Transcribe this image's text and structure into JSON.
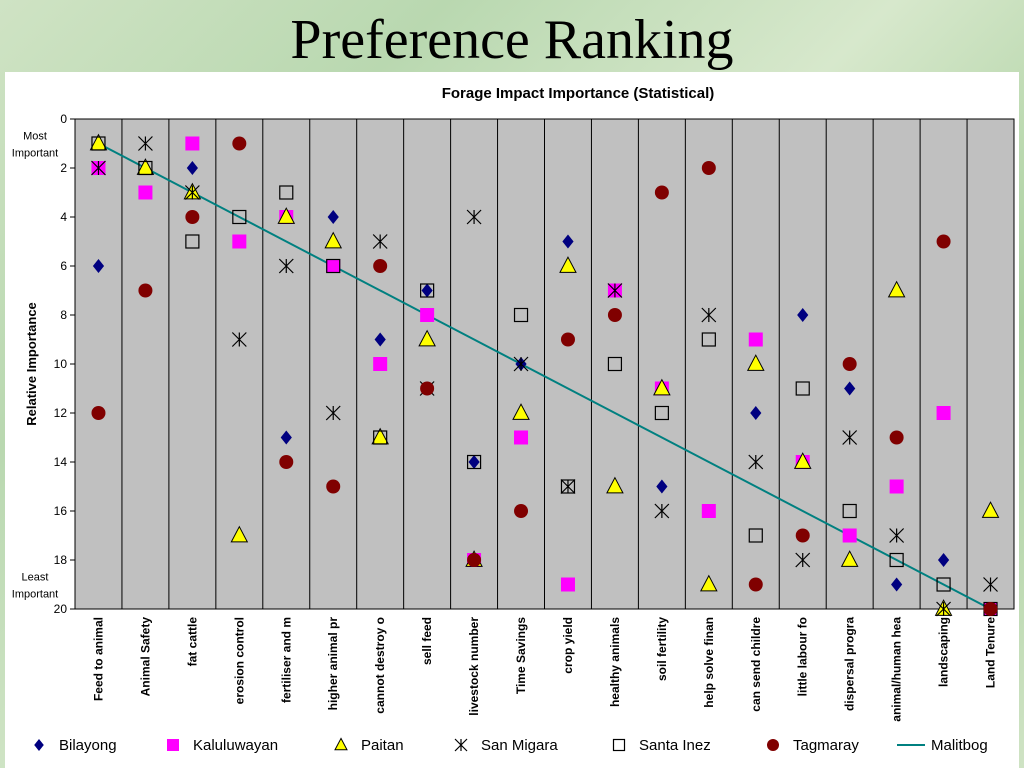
{
  "slide_title": "Preference Ranking",
  "chart_data": {
    "type": "scatter",
    "title": "Forage Impact Importance (Statistical)",
    "ylabel": "Relative Importance",
    "ylim": [
      0,
      20
    ],
    "y_ticks": [
      0,
      2,
      4,
      6,
      8,
      10,
      12,
      14,
      16,
      18,
      20
    ],
    "y_axis_reversed": true,
    "y_annotations": [
      {
        "text": "Most Important",
        "lines": [
          "Most",
          "Important"
        ],
        "y": 1
      },
      {
        "text": "Least Important",
        "lines": [
          "Least",
          "Important"
        ],
        "y": 19
      }
    ],
    "categories": [
      "Feed to animal",
      "Animal Safety",
      "fat cattle",
      "erosion control",
      "fertiliser and m",
      "higher animal pr",
      "cannot destroy o",
      "sell feed",
      "livestock number",
      "Time Savings",
      "crop yield",
      "healthy animals",
      "soil fertility",
      "help solve finan",
      "can send childre",
      "little labour fo",
      "dispersal progra",
      "animal/human hea",
      "landscaping",
      "Land Tenure"
    ],
    "series": [
      {
        "name": "Bilayong",
        "marker": "diamond",
        "color": "#000080",
        "values": [
          6,
          3,
          2,
          1,
          13,
          4,
          9,
          7,
          14,
          10,
          5,
          7,
          15,
          16,
          12,
          8,
          11,
          19,
          18,
          20
        ]
      },
      {
        "name": "Kaluluwayan",
        "marker": "square",
        "color": "#ff00ff",
        "values": [
          2,
          3,
          1,
          5,
          4,
          6,
          10,
          8,
          18,
          13,
          19,
          7,
          11,
          16,
          9,
          14,
          17,
          15,
          12,
          20
        ]
      },
      {
        "name": "Paitan",
        "marker": "triangle",
        "color": "#ffff00",
        "values": [
          1,
          2,
          3,
          17,
          4,
          5,
          13,
          9,
          18,
          12,
          6,
          15,
          11,
          19,
          10,
          14,
          18,
          7,
          20,
          16
        ]
      },
      {
        "name": "San Migara",
        "marker": "star",
        "color": "#000000",
        "values": [
          2,
          1,
          3,
          9,
          6,
          12,
          5,
          11,
          4,
          10,
          15,
          7,
          16,
          8,
          14,
          18,
          13,
          17,
          20,
          19
        ]
      },
      {
        "name": "Santa Inez",
        "marker": "open-square",
        "color": "#000000",
        "values": [
          1,
          2,
          5,
          4,
          3,
          6,
          13,
          7,
          14,
          8,
          15,
          10,
          12,
          9,
          17,
          11,
          16,
          18,
          19,
          20
        ]
      },
      {
        "name": "Tagmaray",
        "marker": "circle",
        "color": "#800000",
        "values": [
          12,
          7,
          4,
          1,
          14,
          15,
          6,
          11,
          18,
          16,
          9,
          8,
          3,
          2,
          19,
          17,
          10,
          13,
          5,
          20
        ]
      },
      {
        "name": "Malitbog",
        "marker": "line",
        "color": "#008080",
        "values": [
          1,
          2,
          3,
          4,
          5,
          6,
          7,
          8,
          9,
          10,
          11,
          12,
          13,
          14,
          15,
          16,
          17,
          18,
          19,
          20
        ]
      }
    ],
    "grid": true,
    "plot_background": "#c0c0c0",
    "legend_position": "bottom"
  }
}
